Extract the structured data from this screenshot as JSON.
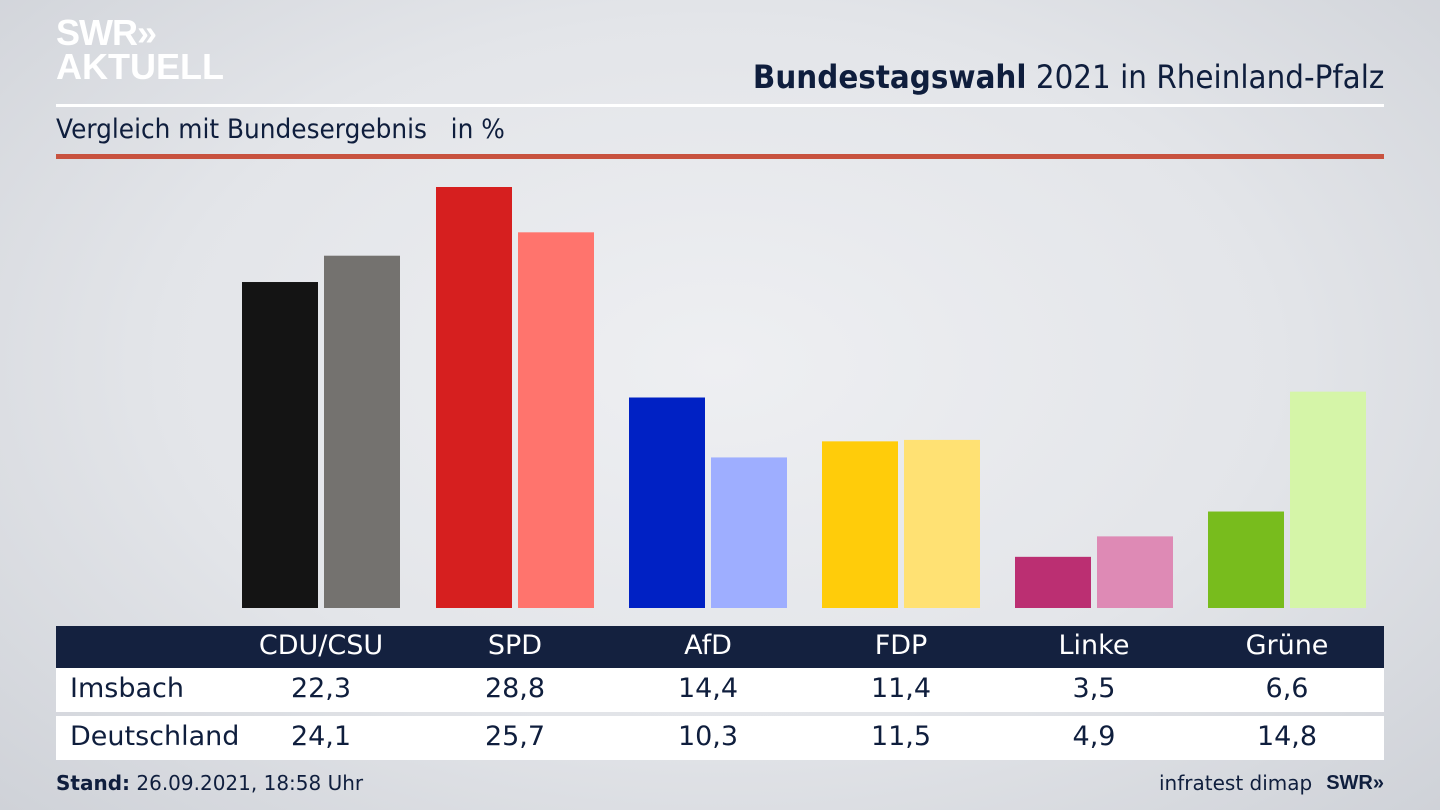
{
  "logo": {
    "line1": "SWR»",
    "line2": "AKTUELL"
  },
  "header": {
    "title_bold": "Bundestagswahl",
    "title_rest": " 2021 in Rheinland-Pfalz"
  },
  "subtitle": "Vergleich mit Bundesergebnis   in %",
  "table": {
    "columns": [
      "CDU/CSU",
      "SPD",
      "AfD",
      "FDP",
      "Linke",
      "Grüne"
    ],
    "rows": [
      {
        "label": "Imsbach",
        "values": [
          "22,3",
          "28,8",
          "14,4",
          "11,4",
          "3,5",
          "6,6"
        ]
      },
      {
        "label": "Deutschland",
        "values": [
          "24,1",
          "25,7",
          "10,3",
          "11,5",
          "4,9",
          "14,8"
        ]
      }
    ]
  },
  "footer": {
    "stand_label": "Stand:",
    "stand_value": " 26.09.2021, 18:58 Uhr",
    "source": "infratest dimap",
    "brand": "SWR»"
  },
  "chart_data": {
    "type": "bar",
    "title": "Bundestagswahl 2021 in Rheinland-Pfalz",
    "subtitle": "Vergleich mit Bundesergebnis in %",
    "xlabel": "",
    "ylabel": "%",
    "ylim": [
      0,
      28.8
    ],
    "grid": false,
    "categories": [
      "CDU/CSU",
      "SPD",
      "AfD",
      "FDP",
      "Linke",
      "Grüne"
    ],
    "series": [
      {
        "name": "Imsbach",
        "values": [
          22.3,
          28.8,
          14.4,
          11.4,
          3.5,
          6.6
        ],
        "colors": [
          "#141414",
          "#d61f1f",
          "#0021c4",
          "#ffcc0a",
          "#bb2f72",
          "#78bc1d"
        ]
      },
      {
        "name": "Deutschland",
        "values": [
          24.1,
          25.7,
          10.3,
          11.5,
          4.9,
          14.8
        ],
        "colors": [
          "#74726f",
          "#ff746d",
          "#9eaeff",
          "#ffe173",
          "#de8ab5",
          "#d5f5a8"
        ]
      }
    ]
  }
}
